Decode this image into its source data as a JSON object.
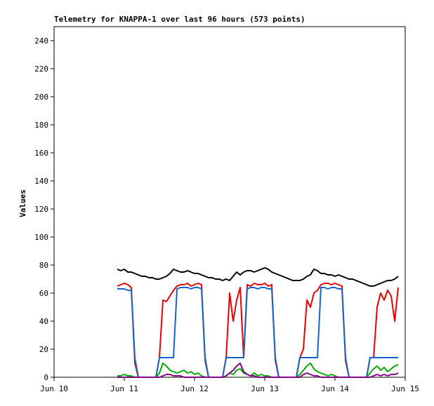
{
  "chart_data": {
    "type": "line",
    "title": "Telemetry for KNAPPA-1 over last 96 hours (573 points)",
    "y_label": "Values",
    "xlim": [
      10,
      15
    ],
    "xticks": [
      {
        "value": 10,
        "label": "Jun 10"
      },
      {
        "value": 11,
        "label": "Jun 11"
      },
      {
        "value": 12,
        "label": "Jun 12"
      },
      {
        "value": 13,
        "label": "Jun 13"
      },
      {
        "value": 14,
        "label": "Jun 14"
      },
      {
        "value": 15,
        "label": "Jun 15"
      }
    ],
    "ylim": [
      0,
      250
    ],
    "yticks": [
      0,
      20,
      40,
      60,
      80,
      100,
      120,
      140,
      160,
      180,
      200,
      220,
      240
    ],
    "grid": false,
    "x": [
      10.9,
      10.95,
      11,
      11.05,
      11.1,
      11.15,
      11.2,
      11.25,
      11.3,
      11.35,
      11.4,
      11.45,
      11.5,
      11.55,
      11.6,
      11.65,
      11.7,
      11.75,
      11.8,
      11.85,
      11.9,
      11.95,
      12,
      12.05,
      12.1,
      12.15,
      12.2,
      12.25,
      12.3,
      12.35,
      12.4,
      12.45,
      12.5,
      12.55,
      12.6,
      12.65,
      12.7,
      12.75,
      12.8,
      12.85,
      12.9,
      12.95,
      13,
      13.05,
      13.1,
      13.15,
      13.2,
      13.25,
      13.3,
      13.35,
      13.4,
      13.45,
      13.5,
      13.55,
      13.6,
      13.65,
      13.7,
      13.75,
      13.8,
      13.85,
      13.9,
      13.95,
      14,
      14.05,
      14.1,
      14.15,
      14.2,
      14.25,
      14.3,
      14.35,
      14.4,
      14.45,
      14.5,
      14.55,
      14.6,
      14.65,
      14.7,
      14.75,
      14.8,
      14.85,
      14.9
    ],
    "series": [
      {
        "color": "#000000",
        "values": [
          77,
          76,
          77,
          75,
          75,
          74,
          73,
          72,
          72,
          71,
          71,
          70,
          70,
          71,
          72,
          74,
          77,
          76,
          75,
          75,
          76,
          75,
          74,
          74,
          73,
          72,
          71,
          71,
          70,
          70,
          69,
          70,
          69,
          72,
          75,
          73,
          75,
          76,
          76,
          75,
          76,
          77,
          78,
          77,
          75,
          74,
          73,
          72,
          71,
          70,
          69,
          69,
          69,
          70,
          72,
          73,
          77,
          76,
          74,
          74,
          73,
          73,
          72,
          73,
          72,
          71,
          70,
          70,
          69,
          68,
          67,
          66,
          65,
          65,
          66,
          67,
          68,
          69,
          69,
          70,
          72
        ]
      },
      {
        "color": "#ee0000",
        "values": [
          65,
          66,
          67,
          66,
          64,
          10,
          0,
          0,
          0,
          0,
          0,
          0,
          14,
          55,
          54,
          58,
          62,
          65,
          66,
          66,
          67,
          65,
          66,
          67,
          66,
          12,
          0,
          0,
          0,
          0,
          0,
          14,
          60,
          40,
          55,
          64,
          14,
          66,
          65,
          67,
          66,
          66,
          67,
          65,
          66,
          12,
          0,
          0,
          0,
          0,
          0,
          0,
          14,
          20,
          55,
          50,
          60,
          62,
          66,
          67,
          67,
          66,
          67,
          66,
          65,
          12,
          0,
          0,
          0,
          0,
          0,
          0,
          14,
          14,
          50,
          60,
          55,
          62,
          58,
          40,
          64
        ]
      },
      {
        "color": "#1166cc",
        "values": [
          63,
          63,
          63,
          62,
          62,
          14,
          0,
          0,
          0,
          0,
          0,
          0,
          14,
          14,
          14,
          14,
          14,
          63,
          64,
          64,
          64,
          63,
          64,
          64,
          63,
          14,
          0,
          0,
          0,
          0,
          0,
          14,
          14,
          14,
          14,
          14,
          14,
          63,
          64,
          64,
          63,
          64,
          64,
          63,
          63,
          14,
          0,
          0,
          0,
          0,
          0,
          0,
          14,
          14,
          14,
          14,
          14,
          14,
          64,
          64,
          63,
          64,
          64,
          63,
          63,
          14,
          0,
          0,
          0,
          0,
          0,
          0,
          14,
          14,
          14,
          14,
          14,
          14,
          14,
          14,
          14
        ]
      },
      {
        "color": "#00aa00",
        "values": [
          1,
          1,
          2,
          1,
          1,
          0,
          0,
          0,
          0,
          0,
          0,
          0,
          3,
          10,
          8,
          5,
          4,
          3,
          4,
          5,
          3,
          4,
          2,
          3,
          1,
          0,
          0,
          0,
          0,
          0,
          0,
          1,
          3,
          2,
          5,
          6,
          3,
          2,
          1,
          3,
          1,
          2,
          1,
          1,
          0,
          0,
          0,
          0,
          0,
          0,
          0,
          0,
          2,
          5,
          8,
          10,
          6,
          4,
          3,
          2,
          1,
          2,
          1,
          0,
          0,
          0,
          0,
          0,
          0,
          0,
          0,
          0,
          3,
          6,
          8,
          5,
          7,
          4,
          6,
          8,
          9
        ]
      },
      {
        "color": "#880088",
        "values": [
          0,
          0,
          0,
          0,
          0,
          0,
          0,
          0,
          0,
          0,
          0,
          0,
          0,
          1,
          2,
          2,
          1,
          1,
          1,
          0,
          0,
          0,
          0,
          0,
          0,
          0,
          0,
          0,
          0,
          0,
          0,
          1,
          3,
          5,
          8,
          10,
          4,
          2,
          1,
          1,
          0,
          0,
          0,
          0,
          0,
          0,
          0,
          0,
          0,
          0,
          0,
          0,
          0,
          2,
          3,
          2,
          1,
          1,
          0,
          0,
          0,
          0,
          0,
          0,
          0,
          0,
          0,
          0,
          0,
          0,
          0,
          0,
          0,
          1,
          2,
          1,
          2,
          1,
          2,
          2,
          3
        ]
      }
    ]
  }
}
